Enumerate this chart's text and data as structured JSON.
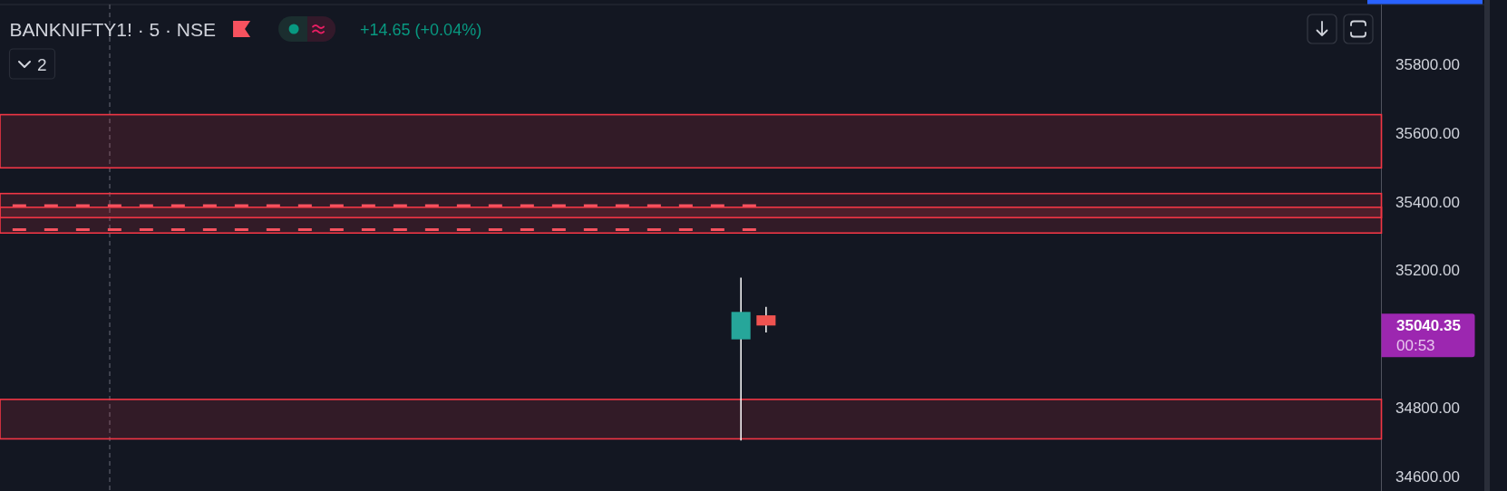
{
  "chart_data": {
    "type": "candlestick",
    "title": "BANKNIFTY1! · 5 · NSE",
    "subtitle": "+14.65 (+0.04%)",
    "categories": [
      null,
      null,
      null,
      null,
      null,
      null,
      null,
      null,
      null,
      null,
      null,
      null,
      null,
      null,
      null,
      null,
      null,
      null,
      null,
      null,
      null,
      null,
      null,
      null,
      null,
      null,
      null,
      null,
      null,
      null,
      null,
      null,
      null,
      null,
      null,
      null,
      null,
      null,
      null,
      null,
      null,
      null,
      null,
      null,
      null,
      null,
      null,
      null,
      null,
      null,
      null,
      null,
      null,
      null,
      null
    ],
    "ohlc": [
      null,
      null,
      null,
      null,
      null,
      null,
      null,
      null,
      null,
      null,
      null,
      null,
      null,
      null,
      null,
      null,
      null,
      null,
      null,
      null,
      null,
      null,
      null,
      null,
      null,
      null,
      null,
      null,
      null,
      [
        35000,
        35180,
        34705,
        35080
      ],
      [
        35070,
        35095,
        35020,
        35040.35
      ],
      null,
      null,
      null,
      null,
      null,
      null,
      null,
      null,
      null,
      null,
      null,
      null,
      null,
      null,
      null,
      null,
      null,
      null,
      null,
      null,
      null,
      null,
      null,
      null
    ],
    "colors": [
      null,
      null,
      null,
      null,
      null,
      null,
      null,
      null,
      null,
      null,
      null,
      null,
      null,
      null,
      null,
      null,
      null,
      null,
      null,
      null,
      null,
      null,
      null,
      null,
      null,
      null,
      null,
      null,
      null,
      "#26a69a",
      "#ef5350",
      null,
      null,
      null,
      null,
      null,
      null,
      null,
      null,
      null,
      null,
      null,
      null,
      null,
      null,
      null,
      null,
      null,
      null,
      null,
      null,
      null,
      null,
      null,
      null
    ],
    "series": [
      {
        "type": "line",
        "color": "#f7525f",
        "line_style": "dashed",
        "values": [
          35390,
          35390,
          35390,
          35390,
          35390,
          35390,
          35390,
          35390,
          35390,
          35390,
          35390,
          35390,
          35390,
          35390,
          35390,
          35390,
          35390,
          35390,
          35390,
          35390,
          35390,
          35390,
          35390,
          35390,
          35390,
          35390,
          35390,
          35390,
          35390,
          35390,
          35390,
          null,
          null,
          null,
          null,
          null,
          null,
          null,
          null,
          null,
          null,
          null,
          null,
          null,
          null,
          null,
          null,
          null,
          null,
          null,
          null,
          null,
          null,
          null,
          null
        ]
      },
      {
        "type": "line",
        "color": "#f7525f",
        "line_style": "dashed",
        "values": [
          35320,
          35320,
          35320,
          35320,
          35320,
          35320,
          35320,
          35320,
          35320,
          35320,
          35320,
          35320,
          35320,
          35320,
          35320,
          35320,
          35320,
          35320,
          35320,
          35320,
          35320,
          35320,
          35320,
          35320,
          35320,
          35320,
          35320,
          35320,
          35320,
          35320,
          35320,
          null,
          null,
          null,
          null,
          null,
          null,
          null,
          null,
          null,
          null,
          null,
          null,
          null,
          null,
          null,
          null,
          null,
          null,
          null,
          null,
          null,
          null,
          null,
          null
        ]
      }
    ],
    "bands": [
      {
        "axis": "y",
        "from": 35500,
        "to": 35655,
        "color": "#f23645"
      },
      {
        "axis": "y",
        "from": 35355,
        "to": 35425,
        "color": "#f23645"
      },
      {
        "axis": "y",
        "from": 35310,
        "to": 35385,
        "color": "#f23645"
      },
      {
        "axis": "y",
        "from": 34710,
        "to": 34825,
        "color": "#f23645"
      }
    ],
    "ylim": [
      34558,
      35976
    ],
    "yticks": [
      {
        "value": 34600,
        "label": "34600.00"
      },
      {
        "value": 34800,
        "label": "34800.00"
      },
      {
        "value": 35200,
        "label": "35200.00"
      },
      {
        "value": 35400,
        "label": "35400.00"
      },
      {
        "value": 35600,
        "label": "35600.00"
      },
      {
        "value": 35800,
        "label": "35800.00"
      }
    ],
    "tick_labels": "y",
    "annotations": [
      "35040.35",
      "00:53",
      "2"
    ]
  }
}
